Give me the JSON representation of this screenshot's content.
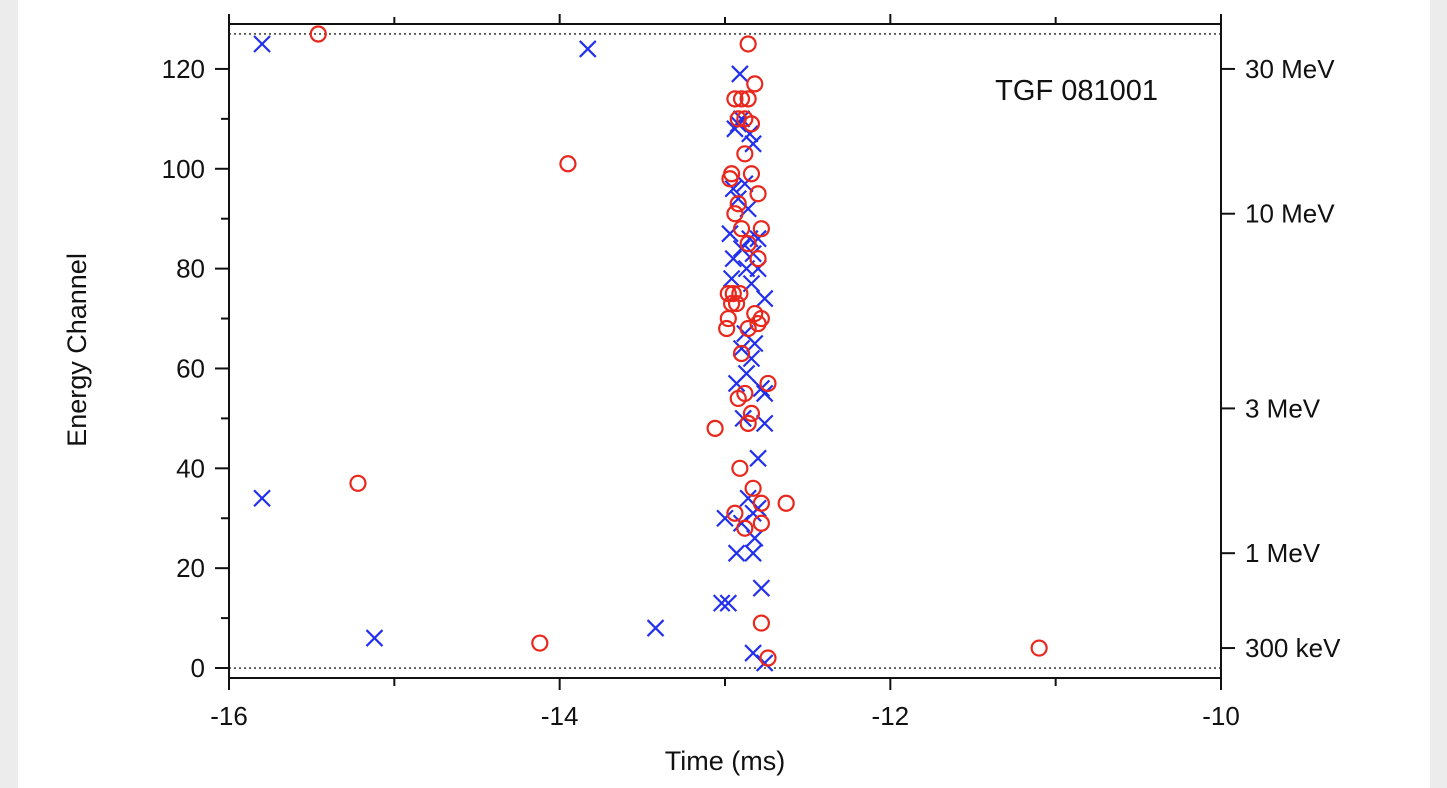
{
  "chart_data": {
    "type": "scatter",
    "title": "",
    "annotation": "TGF 081001",
    "xlabel": "Time (ms)",
    "ylabel": "Energy Channel",
    "xlim": [
      -16,
      -10
    ],
    "ylim": [
      -2,
      129
    ],
    "x_ticks": [
      -16,
      -14,
      -12,
      -10
    ],
    "x_tick_labels": [
      "-16",
      "-14",
      "-12",
      "-10"
    ],
    "x_minor_ticks": [
      -15,
      -13,
      -11
    ],
    "y_ticks": [
      0,
      20,
      40,
      60,
      80,
      100,
      120
    ],
    "y_tick_labels": [
      "0",
      "20",
      "40",
      "60",
      "80",
      "100",
      "120"
    ],
    "y_minor_step": 10,
    "reference_lines": [
      0,
      127
    ],
    "right_axis": {
      "ticks": [
        {
          "channel": 120,
          "label": "30 MeV"
        },
        {
          "channel": 91,
          "label": "10 MeV"
        },
        {
          "channel": 52,
          "label": "3 MeV"
        },
        {
          "channel": 23,
          "label": "1 MeV"
        },
        {
          "channel": 4,
          "label": "300 keV"
        }
      ]
    },
    "grid": false,
    "series": [
      {
        "marker": "x",
        "color": "#2230ee",
        "points": [
          [
            -15.8,
            125
          ],
          [
            -13.83,
            124
          ],
          [
            -15.8,
            34
          ],
          [
            -15.12,
            6
          ],
          [
            -13.42,
            8
          ],
          [
            -13.02,
            13
          ],
          [
            -12.98,
            13
          ],
          [
            -12.83,
            3
          ],
          [
            -12.76,
            1
          ],
          [
            -12.91,
            119
          ],
          [
            -12.9,
            110
          ],
          [
            -12.92,
            109
          ],
          [
            -12.94,
            108
          ],
          [
            -12.85,
            107
          ],
          [
            -12.83,
            105
          ],
          [
            -12.88,
            97
          ],
          [
            -12.95,
            96
          ],
          [
            -12.92,
            94
          ],
          [
            -12.86,
            92
          ],
          [
            -12.97,
            87
          ],
          [
            -12.85,
            86
          ],
          [
            -12.8,
            86
          ],
          [
            -12.9,
            84
          ],
          [
            -12.83,
            83
          ],
          [
            -12.95,
            82
          ],
          [
            -12.87,
            80
          ],
          [
            -12.8,
            80
          ],
          [
            -12.96,
            78
          ],
          [
            -12.84,
            77
          ],
          [
            -12.76,
            74
          ],
          [
            -12.88,
            67
          ],
          [
            -12.82,
            65
          ],
          [
            -12.9,
            64
          ],
          [
            -12.84,
            62
          ],
          [
            -12.87,
            59
          ],
          [
            -12.93,
            57
          ],
          [
            -12.78,
            56
          ],
          [
            -12.76,
            55
          ],
          [
            -12.89,
            50
          ],
          [
            -12.76,
            49
          ],
          [
            -12.8,
            42
          ],
          [
            -12.86,
            34
          ],
          [
            -12.8,
            32
          ],
          [
            -12.83,
            31
          ],
          [
            -13.0,
            30
          ],
          [
            -12.9,
            29
          ],
          [
            -12.82,
            26
          ],
          [
            -12.93,
            23
          ],
          [
            -12.83,
            23
          ],
          [
            -12.78,
            16
          ]
        ]
      },
      {
        "marker": "o",
        "color": "#e8271d",
        "points": [
          [
            -15.46,
            127
          ],
          [
            -13.95,
            101
          ],
          [
            -15.22,
            37
          ],
          [
            -14.12,
            5
          ],
          [
            -11.1,
            4
          ],
          [
            -12.74,
            2
          ],
          [
            -12.78,
            9
          ],
          [
            -12.86,
            125
          ],
          [
            -12.82,
            117
          ],
          [
            -12.94,
            114
          ],
          [
            -12.9,
            114
          ],
          [
            -12.86,
            114
          ],
          [
            -12.92,
            110
          ],
          [
            -12.88,
            110
          ],
          [
            -12.84,
            109
          ],
          [
            -12.88,
            103
          ],
          [
            -12.96,
            99
          ],
          [
            -12.84,
            99
          ],
          [
            -12.97,
            98
          ],
          [
            -12.8,
            95
          ],
          [
            -12.92,
            93
          ],
          [
            -12.94,
            91
          ],
          [
            -12.9,
            88
          ],
          [
            -12.78,
            88
          ],
          [
            -12.86,
            85
          ],
          [
            -12.8,
            82
          ],
          [
            -12.98,
            75
          ],
          [
            -12.95,
            75
          ],
          [
            -12.91,
            75
          ],
          [
            -12.96,
            73
          ],
          [
            -12.93,
            73
          ],
          [
            -12.98,
            70
          ],
          [
            -12.82,
            71
          ],
          [
            -12.78,
            70
          ],
          [
            -12.8,
            69
          ],
          [
            -12.86,
            68
          ],
          [
            -12.99,
            68
          ],
          [
            -12.9,
            63
          ],
          [
            -12.74,
            57
          ],
          [
            -12.88,
            55
          ],
          [
            -12.92,
            54
          ],
          [
            -12.84,
            51
          ],
          [
            -13.06,
            48
          ],
          [
            -12.86,
            49
          ],
          [
            -12.91,
            40
          ],
          [
            -12.83,
            36
          ],
          [
            -12.78,
            33
          ],
          [
            -12.63,
            33
          ],
          [
            -12.94,
            31
          ],
          [
            -12.78,
            29
          ],
          [
            -12.88,
            28
          ]
        ]
      }
    ]
  }
}
